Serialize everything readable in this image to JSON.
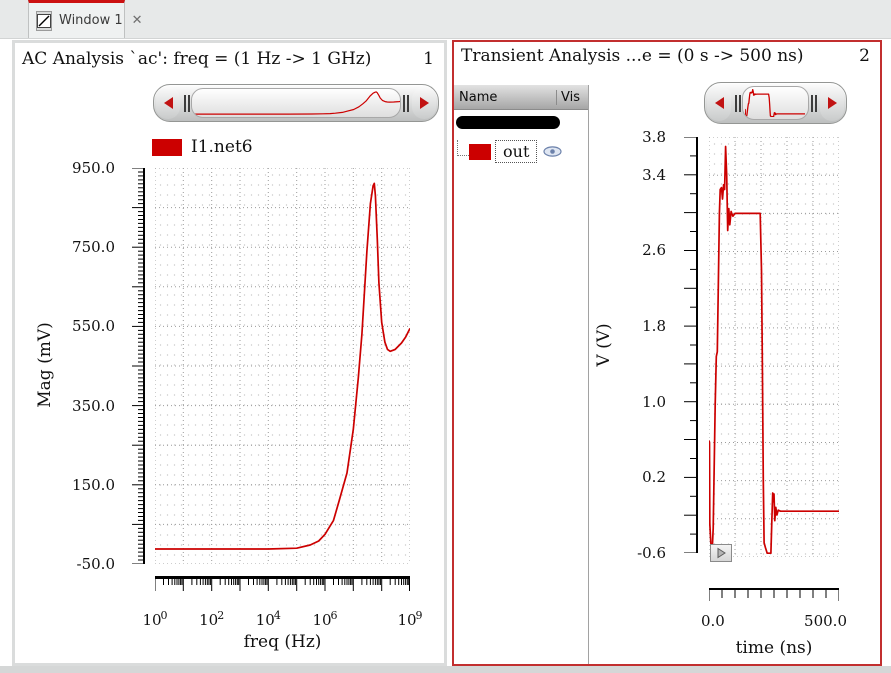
{
  "tab_bar": {
    "tab": {
      "label": "Window 1",
      "close_glyph": "✕"
    }
  },
  "panel2_list": {
    "columns": [
      "Name",
      "Vis"
    ]
  },
  "colors": {
    "curve_red": "#cc0000",
    "legend_swatch_red": "#cc0000",
    "selected_panel_border": "#c22f2f",
    "tab_accent_red": "#cc1111",
    "eye_icon_blue": "#6d82ab"
  },
  "chart_data": [
    {
      "type": "line",
      "window_number": "1",
      "title": "AC Analysis `ac': freq = (1 Hz -> 1 GHz)",
      "xlabel": "freq (Hz)",
      "ylabel": "Mag (mV)",
      "xscale": "log",
      "xlim": [
        1,
        1000000000
      ],
      "ylim": [
        -50,
        950
      ],
      "grid": "dotted",
      "legend_position": "top",
      "ytick_values": [
        950,
        750,
        550,
        350,
        150,
        -50
      ],
      "ytick_labels": [
        "950.0",
        "750.0",
        "550.0",
        "350.0",
        "150.0",
        "-50.0"
      ],
      "xtick_base": "10",
      "xtick_exponents": [
        "0",
        "2",
        "4",
        "6",
        "9"
      ],
      "x_gridlines": [
        1,
        10,
        100,
        1000,
        10000,
        100000,
        1000000,
        10000000,
        100000000,
        1000000000
      ],
      "y_gridlines": [
        -50,
        50,
        150,
        250,
        350,
        450,
        550,
        650,
        750,
        850,
        950
      ],
      "series": [
        {
          "name": "I1.net6",
          "color": "#cc0000",
          "points": [
            [
              1,
              -12
            ],
            [
              10,
              -12
            ],
            [
              100,
              -12
            ],
            [
              1000,
              -12
            ],
            [
              10000,
              -12
            ],
            [
              100000,
              -10
            ],
            [
              300000,
              -2
            ],
            [
              600000,
              8
            ],
            [
              1000000,
              25
            ],
            [
              2000000,
              60
            ],
            [
              3162278,
              110
            ],
            [
              6000000,
              180
            ],
            [
              10000000,
              290
            ],
            [
              15000000,
              420
            ],
            [
              20000000,
              530
            ],
            [
              30000000,
              740
            ],
            [
              40000000,
              860
            ],
            [
              50000000,
              905
            ],
            [
              55000000,
              911
            ],
            [
              60000000,
              880
            ],
            [
              70000000,
              770
            ],
            [
              80000000,
              660
            ],
            [
              100000000,
              560
            ],
            [
              130000000,
              510
            ],
            [
              160000000,
              492
            ],
            [
              200000000,
              487
            ],
            [
              300000000,
              492
            ],
            [
              500000000,
              508
            ],
            [
              700000000,
              523
            ],
            [
              1000000000,
              545
            ]
          ]
        }
      ]
    },
    {
      "type": "line",
      "window_number": "2",
      "title": "Transient Analysis ...e = (0 s -> 500 ns)",
      "xlabel": "time (ns)",
      "ylabel": "V (V)",
      "xscale": "linear",
      "xlim": [
        0,
        500
      ],
      "ylim": [
        -0.6,
        3.8
      ],
      "grid": "dotted",
      "ytick_values": [
        3.8,
        3.4,
        2.6,
        1.8,
        1.0,
        0.2,
        -0.6
      ],
      "ytick_labels": [
        "3.8",
        "3.4",
        "2.6",
        "1.8",
        "1.0",
        "0.2",
        "-0.6"
      ],
      "xtick_values": [
        0,
        500
      ],
      "xtick_labels": [
        "0.0",
        "500.0"
      ],
      "x_gridlines": [
        0,
        100,
        200,
        300,
        400,
        500
      ],
      "y_gridlines": [
        -0.6,
        -0.2,
        0.2,
        0.6,
        1.0,
        1.4,
        1.8,
        2.2,
        2.6,
        3.0,
        3.4,
        3.8
      ],
      "series": [
        {
          "name": "out",
          "color": "#cc0000",
          "visible": true,
          "points": [
            [
              0,
              0.62
            ],
            [
              2,
              0.6
            ],
            [
              3,
              -0.25
            ],
            [
              7,
              -0.45
            ],
            [
              12,
              -0.55
            ],
            [
              16,
              -0.3
            ],
            [
              20,
              0.35
            ],
            [
              24,
              1.0
            ],
            [
              28,
              1.5
            ],
            [
              32,
              1.55
            ],
            [
              36,
              2.3
            ],
            [
              40,
              3.0
            ],
            [
              43,
              3.25
            ],
            [
              48,
              3.27
            ],
            [
              52,
              3.15
            ],
            [
              56,
              3.3
            ],
            [
              60,
              3.25
            ],
            [
              64,
              3.7
            ],
            [
              68,
              3.4
            ],
            [
              72,
              2.82
            ],
            [
              76,
              3.05
            ],
            [
              80,
              2.88
            ],
            [
              85,
              3.02
            ],
            [
              92,
              2.97
            ],
            [
              100,
              3.0
            ],
            [
              197,
              3.0
            ],
            [
              202,
              2.4
            ],
            [
              205,
              1.5
            ],
            [
              209,
              0.2
            ],
            [
              212,
              -0.45
            ],
            [
              217,
              -0.5
            ],
            [
              224,
              -0.56
            ],
            [
              238,
              -0.56
            ],
            [
              242,
              -0.2
            ],
            [
              245,
              0.07
            ],
            [
              248,
              -0.02
            ],
            [
              250,
              0.06
            ],
            [
              253,
              -0.22
            ],
            [
              257,
              -0.08
            ],
            [
              261,
              -0.16
            ],
            [
              266,
              -0.11
            ],
            [
              275,
              -0.12
            ],
            [
              500,
              -0.12
            ]
          ]
        }
      ]
    }
  ]
}
